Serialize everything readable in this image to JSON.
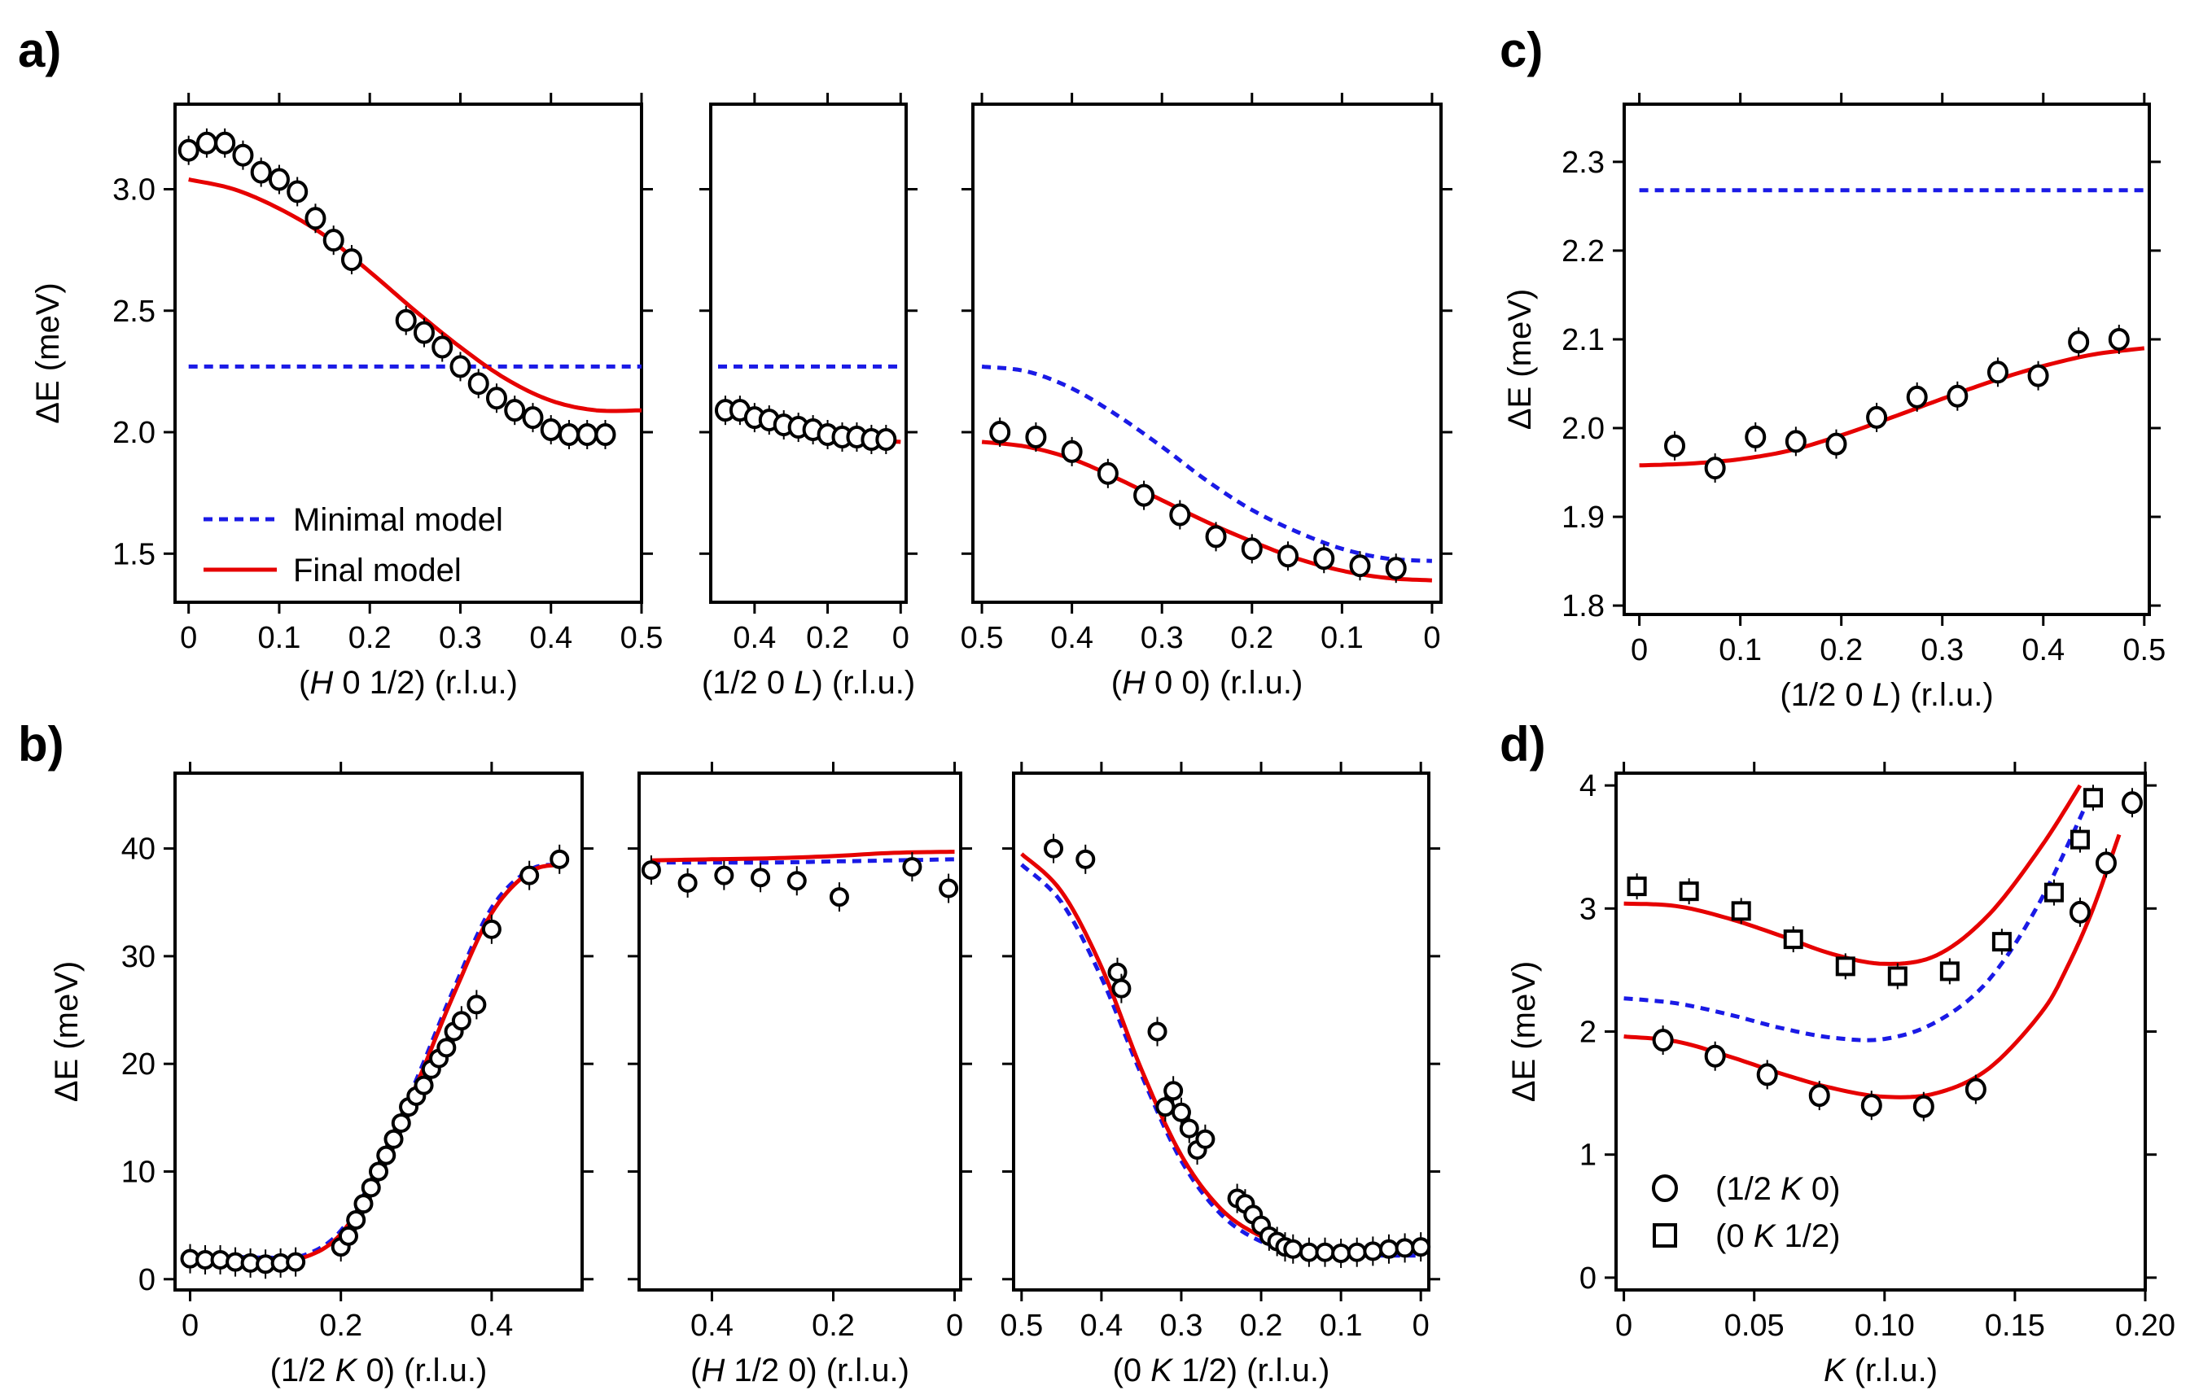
{
  "figure": {
    "panel_labels": {
      "a": "a)",
      "b": "b)",
      "c": "c)",
      "d": "d)"
    },
    "colors": {
      "minimal": "#1a1ae6",
      "final": "#e60000",
      "data": "#000000"
    }
  },
  "chart_data": [
    {
      "id": "a1",
      "type": "scatter",
      "panel": "a",
      "xlabel": "(H 0 1/2) (r.l.u.)",
      "ylabel": "ΔE (meV)",
      "xlim": [
        -0.015,
        0.5
      ],
      "ylim": [
        1.3,
        3.35
      ],
      "xticks": [
        0,
        0.1,
        0.2,
        0.3,
        0.4,
        0.5
      ],
      "xtick_labels": [
        "0",
        "0.1",
        "0.2",
        "0.3",
        "0.4",
        "0.5"
      ],
      "yticks": [
        1.5,
        2.0,
        2.5,
        3.0
      ],
      "ytick_labels": [
        "1.5",
        "2.0",
        "2.5",
        "3.0"
      ],
      "data": {
        "x": [
          0,
          0.02,
          0.04,
          0.06,
          0.08,
          0.1,
          0.12,
          0.14,
          0.16,
          0.18,
          0.24,
          0.26,
          0.28,
          0.3,
          0.32,
          0.34,
          0.36,
          0.38,
          0.4,
          0.42,
          0.44,
          0.46
        ],
        "y": [
          3.16,
          3.19,
          3.19,
          3.14,
          3.07,
          3.04,
          2.99,
          2.88,
          2.79,
          2.71,
          2.46,
          2.41,
          2.35,
          2.27,
          2.2,
          2.14,
          2.09,
          2.06,
          2.01,
          1.99,
          1.99,
          1.99
        ]
      },
      "minimal_model": {
        "x": [
          0,
          0.5
        ],
        "y": [
          2.27,
          2.27
        ]
      },
      "final_model": {
        "x": [
          0,
          0.05,
          0.1,
          0.15,
          0.2,
          0.25,
          0.3,
          0.35,
          0.4,
          0.45,
          0.5
        ],
        "y": [
          3.04,
          3.0,
          2.92,
          2.81,
          2.66,
          2.5,
          2.35,
          2.22,
          2.13,
          2.09,
          2.09
        ]
      },
      "legend": [
        {
          "label": "Minimal model",
          "style": "dashed-blue"
        },
        {
          "label": "Final model",
          "style": "solid-red"
        }
      ]
    },
    {
      "id": "a2",
      "type": "scatter",
      "panel": "a",
      "xlabel": "(1/2 0 L) (r.l.u.)",
      "ylabel": "",
      "xlim": [
        0.52,
        -0.015
      ],
      "ylim": [
        1.3,
        3.35
      ],
      "xticks": [
        0.4,
        0.2,
        0
      ],
      "xtick_labels": [
        "0.4",
        "0.2",
        "0"
      ],
      "yticks": [
        1.5,
        2.0,
        2.5,
        3.0
      ],
      "data": {
        "x": [
          0.48,
          0.44,
          0.4,
          0.36,
          0.32,
          0.28,
          0.24,
          0.2,
          0.16,
          0.12,
          0.08,
          0.04
        ],
        "y": [
          2.09,
          2.09,
          2.06,
          2.05,
          2.03,
          2.02,
          2.01,
          1.99,
          1.98,
          1.98,
          1.97,
          1.97
        ]
      },
      "minimal_model": {
        "x": [
          0.5,
          0
        ],
        "y": [
          2.27,
          2.27
        ]
      },
      "final_model": {
        "x": [
          0.5,
          0.4,
          0.3,
          0.2,
          0.1,
          0
        ],
        "y": [
          2.09,
          2.06,
          2.03,
          2.0,
          1.97,
          1.96
        ]
      }
    },
    {
      "id": "a3",
      "type": "scatter",
      "panel": "a",
      "xlabel": "(H 0 0) (r.l.u.)",
      "ylabel": "",
      "xlim": [
        0.51,
        -0.01
      ],
      "ylim": [
        1.3,
        3.35
      ],
      "xticks": [
        0.5,
        0.4,
        0.3,
        0.2,
        0.1,
        0
      ],
      "xtick_labels": [
        "0.5",
        "0.4",
        "0.3",
        "0.2",
        "0.1",
        "0"
      ],
      "yticks": [
        1.5,
        2.0,
        2.5,
        3.0
      ],
      "data": {
        "x": [
          0.48,
          0.44,
          0.4,
          0.36,
          0.32,
          0.28,
          0.24,
          0.2,
          0.16,
          0.12,
          0.08,
          0.04
        ],
        "y": [
          2.0,
          1.98,
          1.92,
          1.83,
          1.74,
          1.66,
          1.57,
          1.52,
          1.49,
          1.48,
          1.45,
          1.44
        ]
      },
      "minimal_model": {
        "x": [
          0.5,
          0.45,
          0.4,
          0.35,
          0.3,
          0.25,
          0.2,
          0.15,
          0.1,
          0.05,
          0
        ],
        "y": [
          2.27,
          2.25,
          2.18,
          2.07,
          1.94,
          1.8,
          1.68,
          1.59,
          1.52,
          1.48,
          1.47
        ]
      },
      "final_model": {
        "x": [
          0.5,
          0.45,
          0.4,
          0.35,
          0.3,
          0.25,
          0.2,
          0.15,
          0.1,
          0.05,
          0
        ],
        "y": [
          1.96,
          1.94,
          1.89,
          1.81,
          1.72,
          1.63,
          1.55,
          1.48,
          1.43,
          1.4,
          1.39
        ]
      }
    },
    {
      "id": "b1",
      "type": "scatter",
      "panel": "b",
      "xlabel": "(1/2 K 0) (r.l.u.)",
      "ylabel": "ΔE (meV)",
      "xlim": [
        -0.02,
        0.52
      ],
      "ylim": [
        -1,
        47
      ],
      "xticks": [
        0,
        0.2,
        0.4
      ],
      "xtick_labels": [
        "0",
        "0.2",
        "0.4"
      ],
      "yticks": [
        0,
        10,
        20,
        30,
        40
      ],
      "ytick_labels": [
        "0",
        "10",
        "20",
        "30",
        "40"
      ],
      "data": {
        "x": [
          0,
          0.02,
          0.04,
          0.06,
          0.08,
          0.1,
          0.12,
          0.14,
          0.2,
          0.21,
          0.22,
          0.23,
          0.24,
          0.25,
          0.26,
          0.27,
          0.28,
          0.29,
          0.3,
          0.31,
          0.32,
          0.33,
          0.34,
          0.35,
          0.36,
          0.38,
          0.4,
          0.45,
          0.49
        ],
        "y": [
          1.9,
          1.8,
          1.8,
          1.6,
          1.5,
          1.4,
          1.5,
          1.6,
          3.0,
          4.0,
          5.5,
          7.0,
          8.5,
          10.0,
          11.5,
          13.0,
          14.5,
          16.0,
          17.0,
          18.0,
          19.5,
          20.5,
          21.5,
          23.0,
          24.0,
          25.5,
          32.5,
          37.5,
          39.0
        ]
      },
      "minimal_model": {
        "x": [
          0,
          0.05,
          0.1,
          0.15,
          0.2,
          0.25,
          0.3,
          0.35,
          0.4,
          0.45,
          0.49
        ],
        "y": [
          2.2,
          2.1,
          2.0,
          2.2,
          4.5,
          10.5,
          18.5,
          27.0,
          34.5,
          38.0,
          38.5
        ]
      },
      "final_model": {
        "x": [
          0,
          0.05,
          0.1,
          0.15,
          0.2,
          0.25,
          0.3,
          0.35,
          0.4,
          0.45,
          0.49
        ],
        "y": [
          2.0,
          1.9,
          1.8,
          2.0,
          4.2,
          10.0,
          18.0,
          26.5,
          34.0,
          37.8,
          38.5
        ]
      }
    },
    {
      "id": "b2",
      "type": "scatter",
      "panel": "b",
      "xlabel": "(H 1/2 0) (r.l.u.)",
      "ylabel": "",
      "xlim": [
        0.52,
        -0.01
      ],
      "ylim": [
        -1,
        47
      ],
      "xticks": [
        0.4,
        0.2,
        0
      ],
      "xtick_labels": [
        "0.4",
        "0.2",
        "0"
      ],
      "yticks": [
        0,
        10,
        20,
        30,
        40
      ],
      "data": {
        "x": [
          0.5,
          0.44,
          0.38,
          0.32,
          0.26,
          0.19,
          0.07,
          0.01
        ],
        "y": [
          38.0,
          36.8,
          37.5,
          37.3,
          37.0,
          35.5,
          38.3,
          36.3
        ]
      },
      "minimal_model": {
        "x": [
          0.5,
          0.4,
          0.3,
          0.2,
          0.1,
          0
        ],
        "y": [
          38.7,
          38.7,
          38.7,
          38.8,
          38.9,
          39.0
        ]
      },
      "final_model": {
        "x": [
          0.5,
          0.4,
          0.3,
          0.2,
          0.1,
          0
        ],
        "y": [
          38.9,
          39.0,
          39.1,
          39.3,
          39.6,
          39.7
        ]
      }
    },
    {
      "id": "b3",
      "type": "scatter",
      "panel": "b",
      "xlabel": "(0 K 1/2) (r.l.u.)",
      "ylabel": "",
      "xlim": [
        0.51,
        -0.01
      ],
      "ylim": [
        -1,
        47
      ],
      "xticks": [
        0.5,
        0.4,
        0.3,
        0.2,
        0.1,
        0
      ],
      "xtick_labels": [
        "0.5",
        "0.4",
        "0.3",
        "0.2",
        "0.1",
        "0"
      ],
      "yticks": [
        0,
        10,
        20,
        30,
        40
      ],
      "data": {
        "x": [
          0.46,
          0.42,
          0.38,
          0.375,
          0.33,
          0.32,
          0.31,
          0.3,
          0.29,
          0.28,
          0.27,
          0.23,
          0.22,
          0.21,
          0.2,
          0.19,
          0.18,
          0.17,
          0.16,
          0.14,
          0.12,
          0.1,
          0.08,
          0.06,
          0.04,
          0.02,
          0.0
        ],
        "y": [
          40.0,
          39.0,
          28.5,
          27.0,
          23.0,
          16.0,
          17.5,
          15.5,
          14.0,
          12.0,
          13.0,
          7.5,
          7.0,
          6.0,
          5.0,
          4.0,
          3.5,
          3.0,
          2.8,
          2.5,
          2.5,
          2.4,
          2.5,
          2.6,
          2.8,
          2.9,
          3.0
        ]
      },
      "minimal_model": {
        "x": [
          0.5,
          0.45,
          0.4,
          0.35,
          0.3,
          0.25,
          0.2,
          0.15,
          0.1,
          0.05,
          0
        ],
        "y": [
          38.5,
          35.0,
          28.0,
          19.0,
          11.0,
          6.0,
          3.5,
          2.5,
          2.2,
          2.2,
          2.2
        ]
      },
      "final_model": {
        "x": [
          0.5,
          0.45,
          0.4,
          0.35,
          0.3,
          0.25,
          0.2,
          0.15,
          0.1,
          0.05,
          0
        ],
        "y": [
          39.5,
          36.0,
          29.0,
          19.5,
          11.5,
          6.5,
          4.0,
          3.0,
          2.5,
          2.6,
          2.9
        ]
      }
    },
    {
      "id": "c",
      "type": "scatter",
      "panel": "c",
      "xlabel": "(1/2 0 L) (r.l.u.)",
      "ylabel": "ΔE (meV)",
      "xlim": [
        -0.015,
        0.505
      ],
      "ylim": [
        1.79,
        2.365
      ],
      "xticks": [
        0,
        0.1,
        0.2,
        0.3,
        0.4,
        0.5
      ],
      "xtick_labels": [
        "0",
        "0.1",
        "0.2",
        "0.3",
        "0.4",
        "0.5"
      ],
      "yticks": [
        1.8,
        1.9,
        2.0,
        2.1,
        2.2,
        2.3
      ],
      "ytick_labels": [
        "1.8",
        "1.9",
        "2.0",
        "2.1",
        "2.2",
        "2.3"
      ],
      "data": {
        "x": [
          0.035,
          0.075,
          0.115,
          0.155,
          0.195,
          0.235,
          0.275,
          0.315,
          0.355,
          0.395,
          0.435,
          0.475
        ],
        "y": [
          1.98,
          1.955,
          1.99,
          1.985,
          1.982,
          2.012,
          2.035,
          2.036,
          2.063,
          2.059,
          2.097,
          2.1
        ]
      },
      "minimal_model": {
        "x": [
          0,
          0.5
        ],
        "y": [
          2.268,
          2.268
        ]
      },
      "final_model": {
        "x": [
          0,
          0.05,
          0.1,
          0.15,
          0.2,
          0.25,
          0.3,
          0.35,
          0.4,
          0.45,
          0.5
        ],
        "y": [
          1.958,
          1.96,
          1.965,
          1.975,
          1.992,
          2.012,
          2.033,
          2.053,
          2.07,
          2.083,
          2.09
        ]
      }
    },
    {
      "id": "d",
      "type": "scatter",
      "panel": "d",
      "xlabel": "K (r.l.u.)",
      "ylabel": "ΔE (meV)",
      "xlim": [
        -0.003,
        0.2
      ],
      "ylim": [
        -0.1,
        4.1
      ],
      "xticks": [
        0,
        0.05,
        0.1,
        0.15,
        0.2
      ],
      "xtick_labels": [
        "0",
        "0.05",
        "0.10",
        "0.15",
        "0.20"
      ],
      "yticks": [
        0,
        1,
        2,
        3,
        4
      ],
      "ytick_labels": [
        "0",
        "1",
        "2",
        "3",
        "4"
      ],
      "series": [
        {
          "name": "(1/2 K 0)",
          "marker": "circle",
          "x": [
            0.015,
            0.035,
            0.055,
            0.075,
            0.095,
            0.115,
            0.135,
            0.175,
            0.185,
            0.195
          ],
          "y": [
            1.93,
            1.8,
            1.65,
            1.48,
            1.4,
            1.39,
            1.53,
            2.97,
            3.37,
            3.86
          ]
        },
        {
          "name": "(0 K 1/2)",
          "marker": "square",
          "x": [
            0.005,
            0.025,
            0.045,
            0.065,
            0.085,
            0.105,
            0.125,
            0.145,
            0.165,
            0.175,
            0.18
          ],
          "y": [
            3.18,
            3.14,
            2.98,
            2.75,
            2.53,
            2.45,
            2.49,
            2.73,
            3.13,
            3.56,
            3.9
          ]
        }
      ],
      "minimal_model": {
        "x": [
          0,
          0.02,
          0.04,
          0.06,
          0.08,
          0.1,
          0.12,
          0.14,
          0.16,
          0.18
        ],
        "y": [
          2.27,
          2.23,
          2.14,
          2.03,
          1.95,
          1.94,
          2.08,
          2.42,
          3.07,
          3.97
        ]
      },
      "final_model_lower": {
        "x": [
          0,
          0.02,
          0.04,
          0.06,
          0.08,
          0.1,
          0.12,
          0.14,
          0.16,
          0.17,
          0.18,
          0.19
        ],
        "y": [
          1.96,
          1.92,
          1.8,
          1.66,
          1.54,
          1.47,
          1.5,
          1.7,
          2.15,
          2.52,
          3.0,
          3.6
        ]
      },
      "final_model_upper": {
        "x": [
          0,
          0.02,
          0.04,
          0.06,
          0.08,
          0.1,
          0.12,
          0.14,
          0.16,
          0.175
        ],
        "y": [
          3.04,
          3.02,
          2.92,
          2.78,
          2.63,
          2.55,
          2.62,
          2.95,
          3.5,
          4.0
        ]
      },
      "legend": [
        {
          "label": "(1/2 K 0)",
          "marker": "circle"
        },
        {
          "label": "(0 K 1/2)",
          "marker": "square"
        }
      ]
    }
  ]
}
